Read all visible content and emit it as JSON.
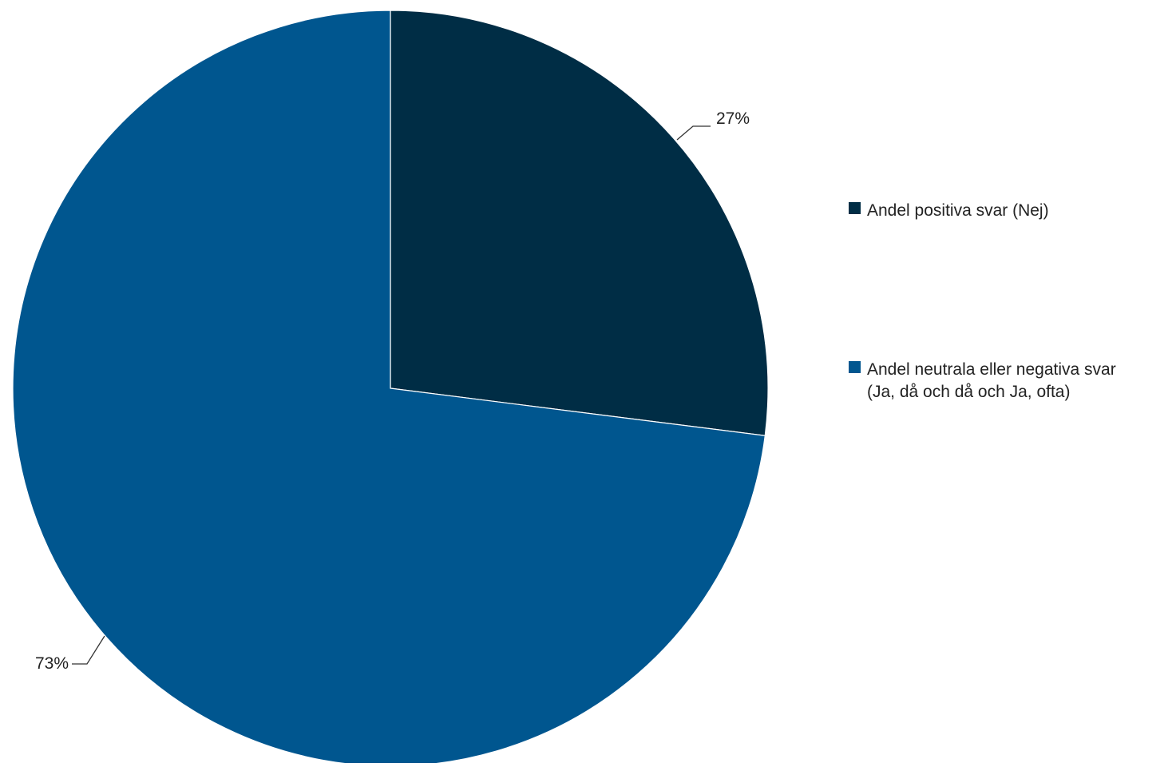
{
  "chart_data": {
    "type": "pie",
    "title": "",
    "start_angle_deg": 0,
    "direction": "clockwise",
    "legend_position": "right",
    "slices": [
      {
        "label": "Andel positiva svar (Nej)",
        "label_lines": [
          "Andel positiva svar (Nej)"
        ],
        "value": 27,
        "value_label": "27%",
        "color": "#002d45"
      },
      {
        "label": "Andel neutrala eller negativa svar (Ja, då och då och Ja, ofta)",
        "label_lines": [
          "Andel neutrala eller negativa svar",
          "(Ja, då och då och Ja, ofta)"
        ],
        "value": 73,
        "value_label": "73%",
        "color": "#00568f"
      }
    ]
  }
}
